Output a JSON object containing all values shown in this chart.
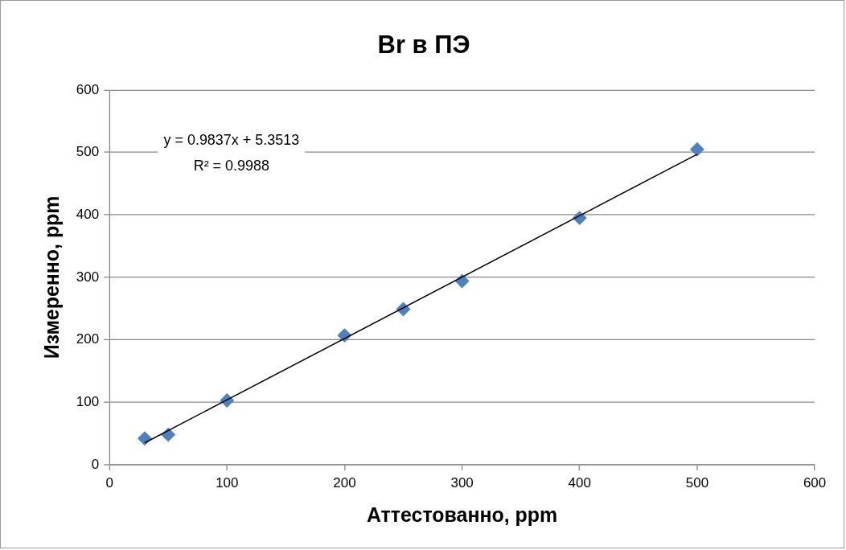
{
  "chart_data": {
    "type": "scatter",
    "title": "Br в ПЭ",
    "xlabel": "Аттестованно, ppm",
    "ylabel": "Измеренно, ppm",
    "series": [
      {
        "type": "scatter",
        "color": "#4f81bd",
        "x": [
          30,
          50,
          100,
          200,
          250,
          300,
          400,
          500
        ],
        "values": [
          42,
          48,
          103,
          207,
          249,
          294,
          395,
          505
        ]
      },
      {
        "type": "line",
        "color": "#000000",
        "x": [
          30,
          500
        ],
        "values": [
          35,
          497
        ],
        "marker": "none"
      }
    ],
    "xlim": [
      0,
      600
    ],
    "xticks": [
      0,
      100,
      200,
      300,
      400,
      500,
      600
    ],
    "ylim": [
      0,
      600
    ],
    "yticks": [
      0,
      100,
      200,
      300,
      400,
      500,
      600
    ],
    "grid": "y",
    "legend": false,
    "marker": "diamond",
    "annotations": [
      "y = 0.9837x + 5.3513",
      "R² = 0.9988"
    ]
  }
}
